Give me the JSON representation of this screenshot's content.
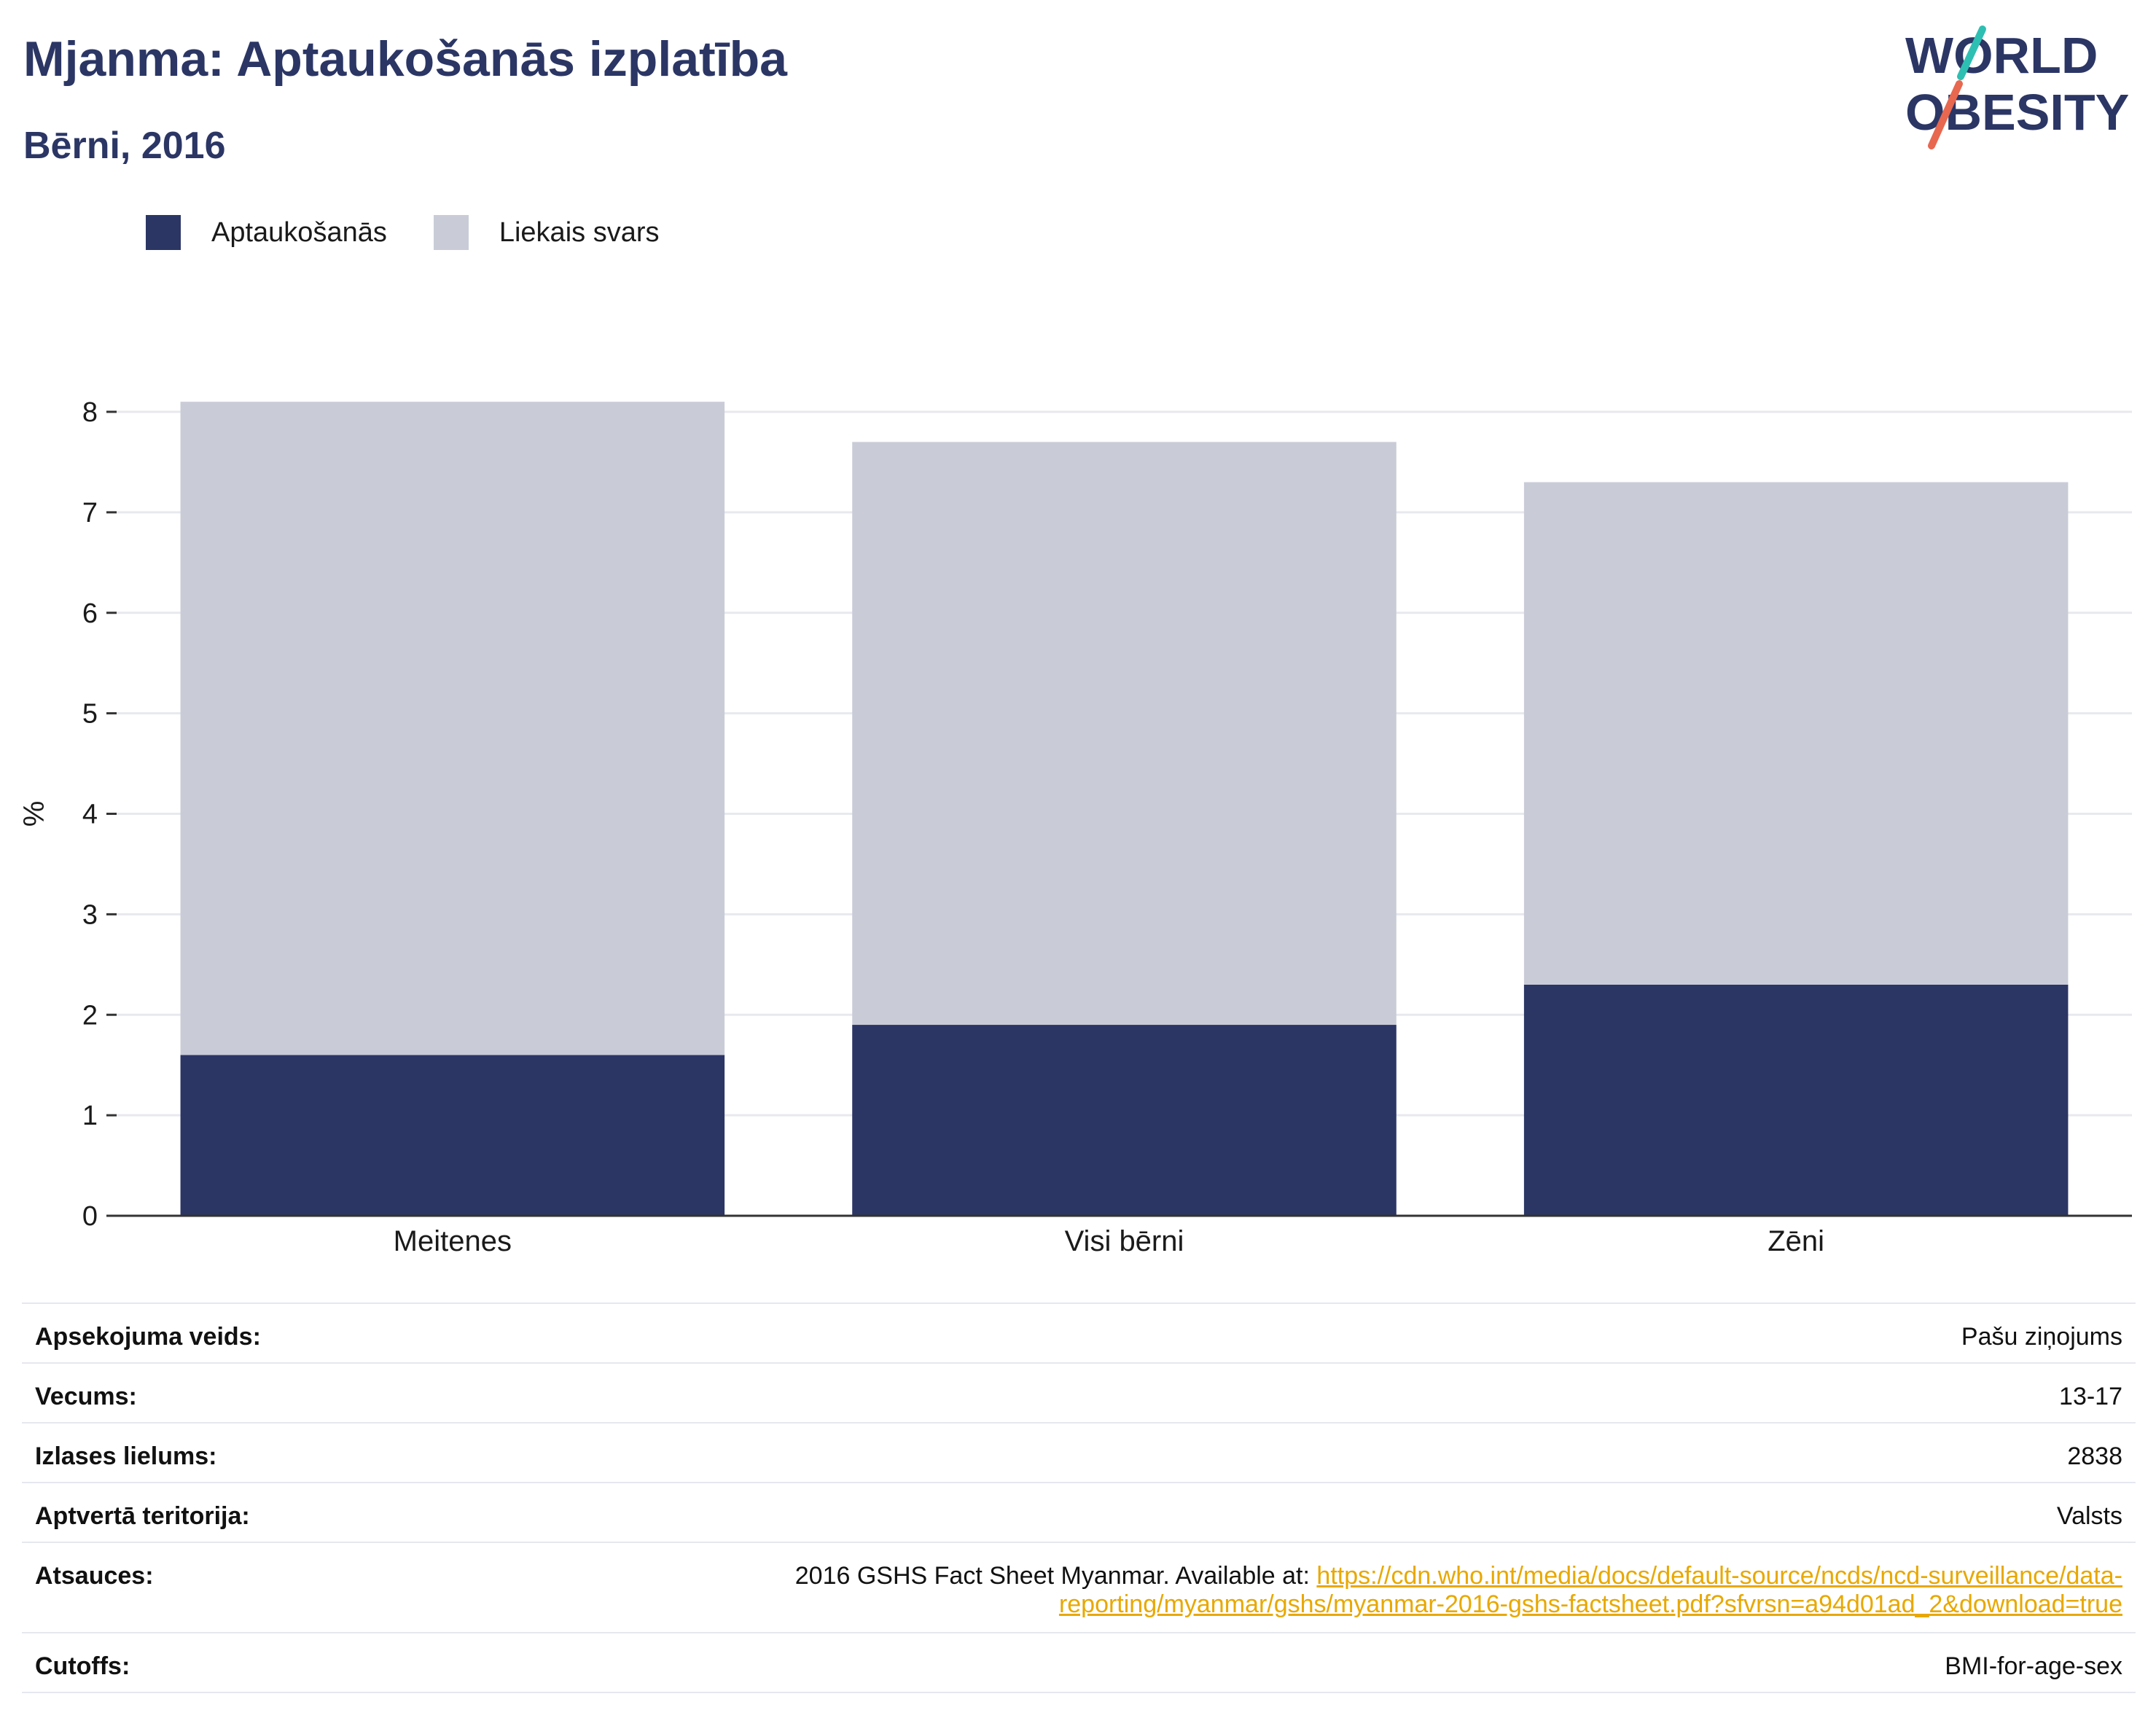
{
  "header": {
    "title": "Mjanma: Aptaukošanās izplatība",
    "subtitle": "Bērni, 2016",
    "logo_line1": "WORLD",
    "logo_line2": "OBESITY"
  },
  "legend": [
    {
      "label": "Aptaukošanās",
      "color": "#2b3665"
    },
    {
      "label": "Liekais svars",
      "color": "#c9ccd7"
    }
  ],
  "chart_data": {
    "type": "bar",
    "stacked": true,
    "categories": [
      "Meitenes",
      "Visi bērni",
      "Zēni"
    ],
    "series": [
      {
        "name": "Aptaukošanās",
        "values": [
          1.6,
          1.9,
          2.3
        ],
        "color": "#2b3665"
      },
      {
        "name": "Liekais svars",
        "values": [
          6.5,
          5.8,
          5.0
        ],
        "color": "#c9ccd7"
      }
    ],
    "ylabel": "%",
    "ylim": [
      0,
      8
    ],
    "yticks": [
      0,
      1,
      2,
      3,
      4,
      5,
      6,
      7,
      8
    ],
    "grid": true,
    "legend_position": "top-left"
  },
  "meta": {
    "survey_type_label": "Apsekojuma veids:",
    "survey_type_value": "Pašu ziņojums",
    "age_label": "Vecums:",
    "age_value": "13-17",
    "sample_label": "Izlases lielums:",
    "sample_value": "2838",
    "area_label": "Aptvertā teritorija:",
    "area_value": "Valsts",
    "refs_label": "Atsauces:",
    "refs_text": "2016 GSHS Fact Sheet Myanmar. Available at: ",
    "refs_link_line1": "https://cdn.who.int/media/docs/default-source/ncds/ncd-surveillance/data-",
    "refs_link_line2": "reporting/myanmar/gshs/myanmar-2016-gshs-factsheet.pdf?sfvrsn=a94d01ad_2&download=true",
    "cutoffs_label": "Cutoffs:",
    "cutoffs_value": "BMI-for-age-sex"
  }
}
